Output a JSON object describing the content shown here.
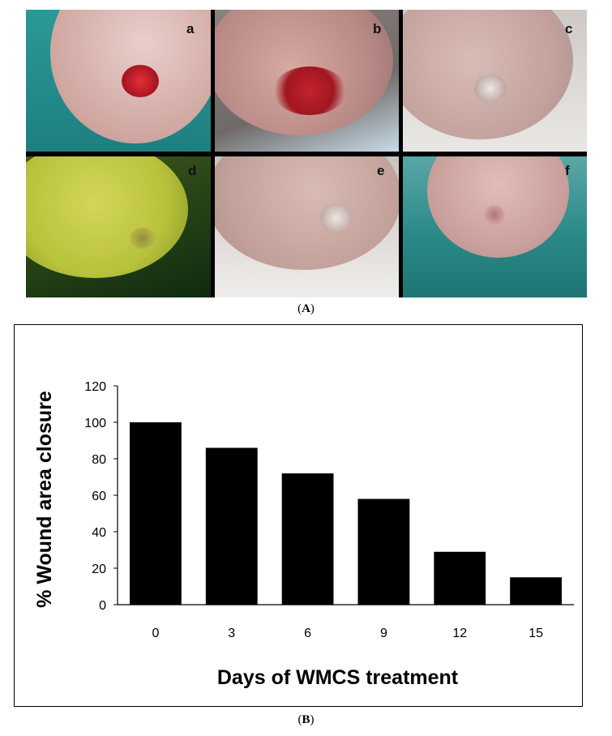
{
  "figure": {
    "panel_letters": [
      "a",
      "b",
      "c",
      "d",
      "e",
      "f"
    ],
    "caption_a_letter": "A",
    "caption_b_letter": "B"
  },
  "colors": {
    "bar": "#000000",
    "drape_teal": "#1e8f8c",
    "skin": "#d9b3ae",
    "wound": "#c8242f",
    "green_light": "#b9cf3a"
  },
  "chart_data": {
    "type": "bar",
    "categories": [
      "0",
      "3",
      "6",
      "9",
      "12",
      "15"
    ],
    "values": [
      100,
      86,
      72,
      58,
      29,
      15
    ],
    "ylim": [
      0,
      120
    ],
    "yticks": [
      0,
      20,
      40,
      60,
      80,
      100,
      120
    ],
    "xlabel": "Days of WMCS treatment",
    "ylabel": "% Wound area closure",
    "grid": false
  }
}
